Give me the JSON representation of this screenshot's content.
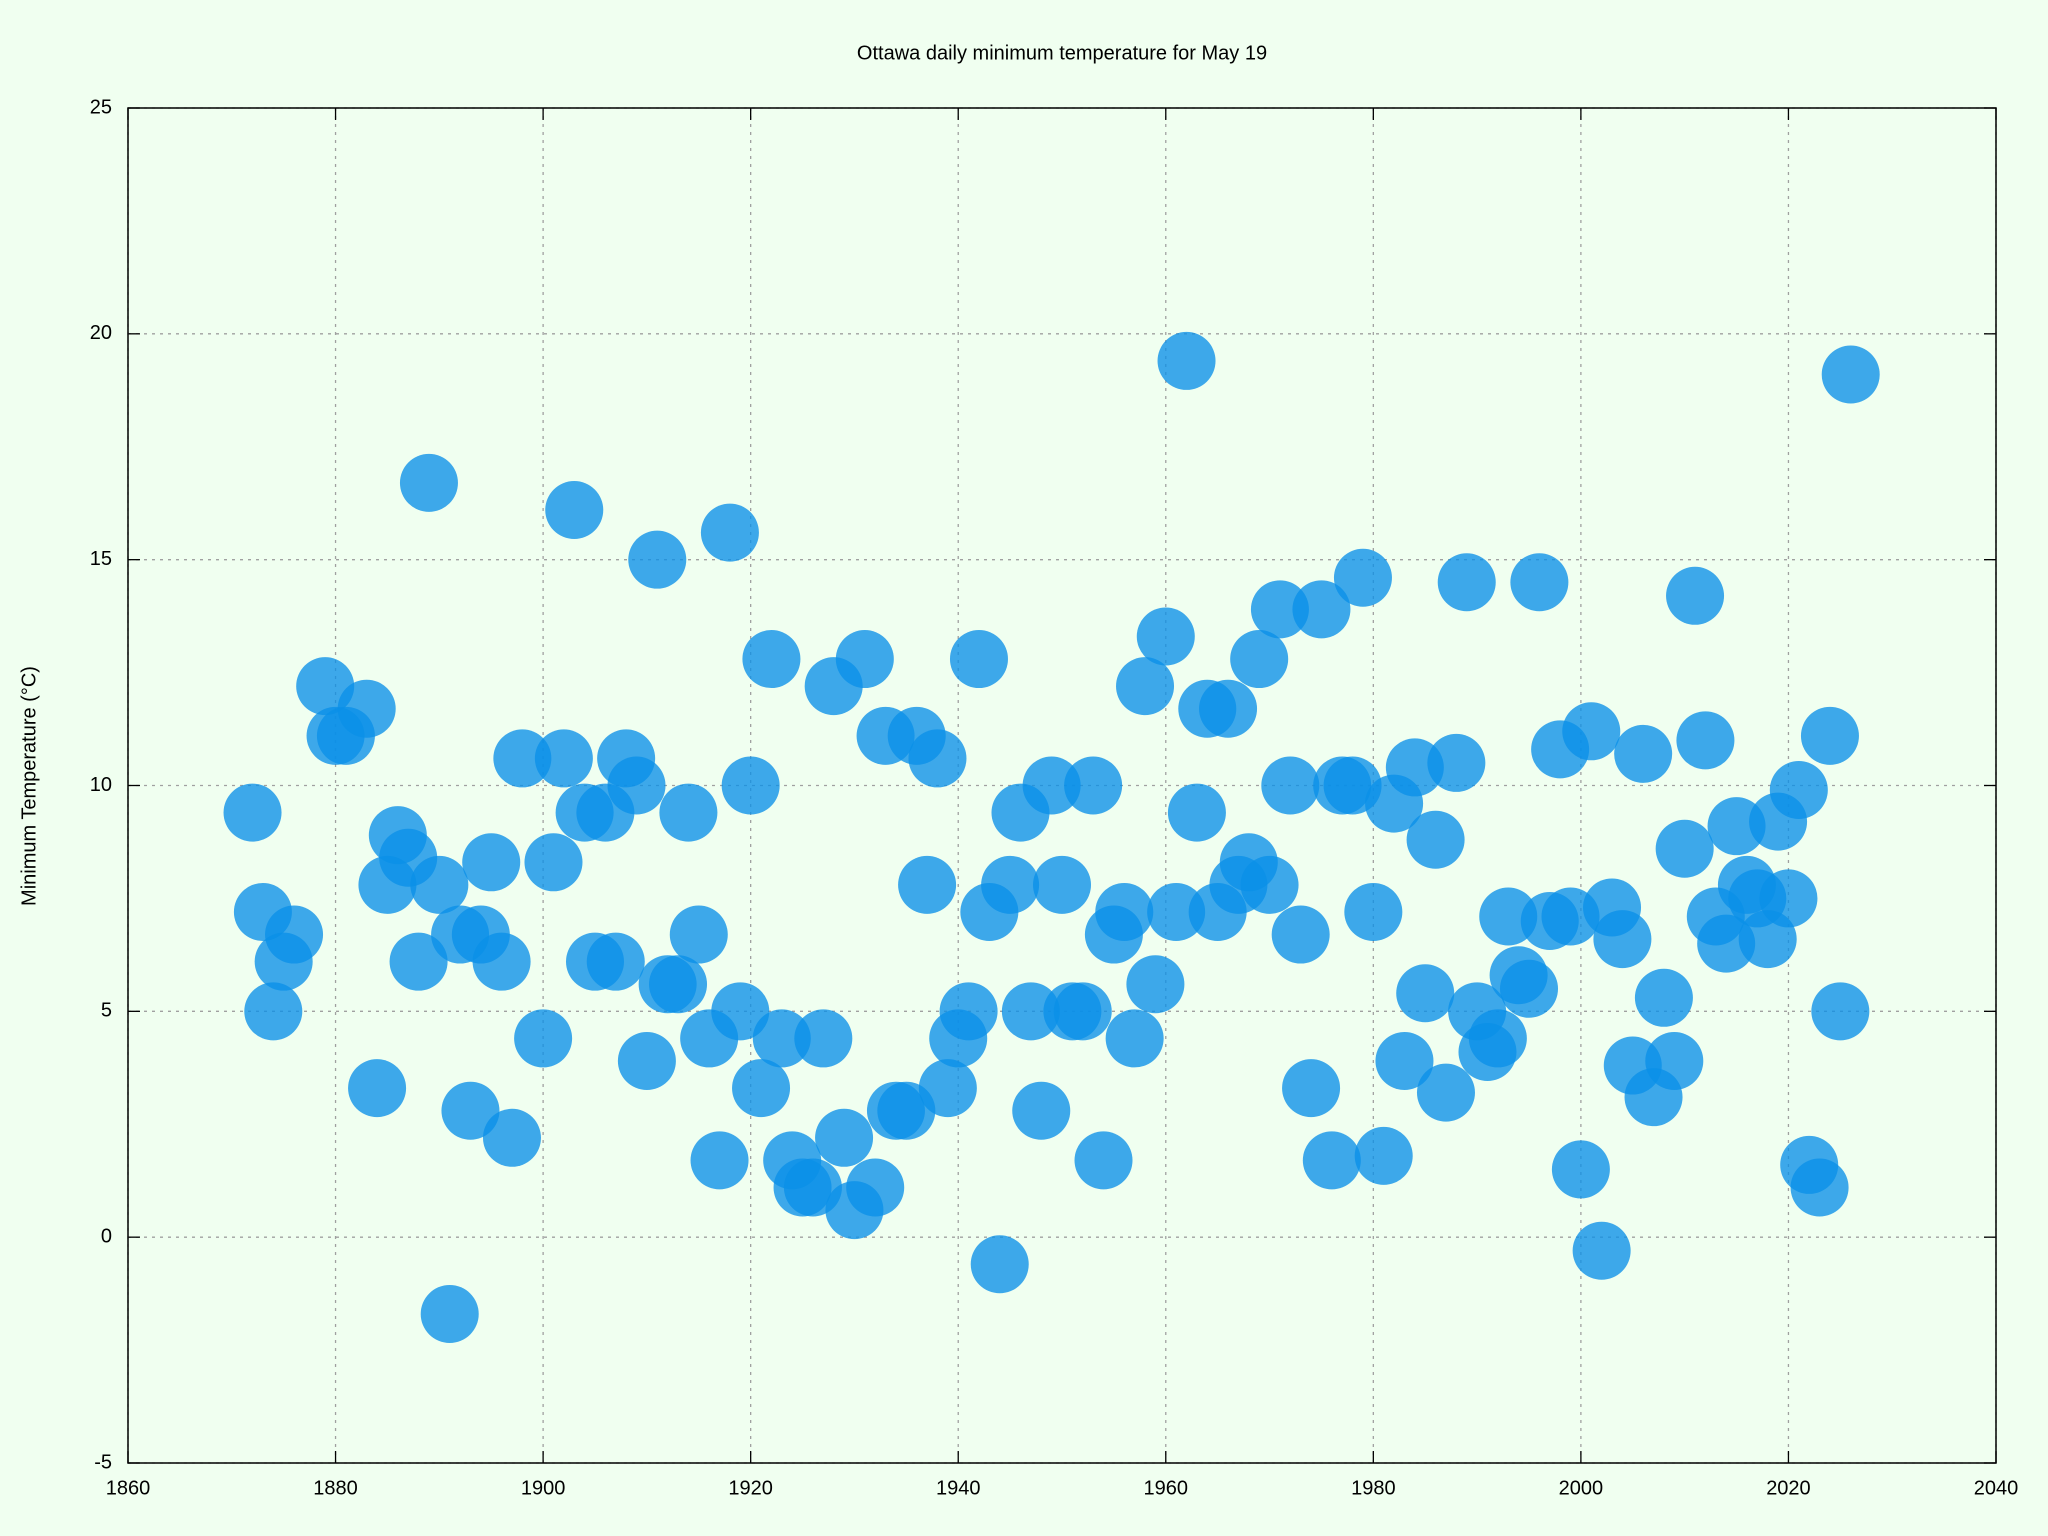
{
  "chart_data": {
    "type": "scatter",
    "title": "Ottawa daily minimum temperature for May 19",
    "y_label": "Minimum Temperature (°C)",
    "x": [
      1872,
      1873,
      1874,
      1875,
      1876,
      1879,
      1880,
      1881,
      1883,
      1884,
      1885,
      1886,
      1887,
      1888,
      1889,
      1890,
      1891,
      1892,
      1893,
      1894,
      1895,
      1896,
      1897,
      1898,
      1900,
      1901,
      1902,
      1903,
      1904,
      1905,
      1906,
      1907,
      1908,
      1909,
      1910,
      1911,
      1912,
      1913,
      1914,
      1915,
      1916,
      1917,
      1918,
      1919,
      1920,
      1921,
      1922,
      1923,
      1924,
      1925,
      1926,
      1927,
      1928,
      1929,
      1930,
      1931,
      1932,
      1933,
      1934,
      1935,
      1936,
      1937,
      1938,
      1939,
      1940,
      1941,
      1942,
      1943,
      1944,
      1945,
      1946,
      1947,
      1948,
      1949,
      1950,
      1951,
      1952,
      1953,
      1954,
      1955,
      1956,
      1957,
      1958,
      1959,
      1960,
      1961,
      1962,
      1963,
      1964,
      1965,
      1966,
      1967,
      1968,
      1969,
      1970,
      1971,
      1972,
      1973,
      1974,
      1975,
      1976,
      1977,
      1978,
      1979,
      1980,
      1981,
      1982,
      1983,
      1984,
      1985,
      1986,
      1987,
      1988,
      1989,
      1990,
      1991,
      1992,
      1993,
      1994,
      1995,
      1996,
      1997,
      1998,
      1999,
      2000,
      2001,
      2002,
      2003,
      2004,
      2005,
      2006,
      2007,
      2008,
      2009,
      2010,
      2011,
      2012,
      2013,
      2014,
      2015,
      2016,
      2017,
      2018,
      2019,
      2020,
      2021,
      2022,
      2023,
      2024,
      2025,
      2026
    ],
    "series": [
      {
        "color": "#0a8fe8",
        "values": [
          9.4,
          7.2,
          5.0,
          6.1,
          6.7,
          12.2,
          11.1,
          11.1,
          11.7,
          3.3,
          7.8,
          8.9,
          8.4,
          6.1,
          16.7,
          7.8,
          -1.7,
          6.7,
          2.8,
          6.7,
          8.3,
          6.1,
          2.2,
          10.6,
          4.4,
          8.3,
          10.6,
          16.1,
          9.4,
          6.1,
          9.4,
          6.1,
          10.6,
          10.0,
          3.9,
          15.0,
          5.6,
          5.6,
          9.4,
          6.7,
          4.4,
          1.7,
          15.6,
          5.0,
          10.0,
          3.3,
          12.8,
          4.4,
          1.7,
          1.1,
          1.1,
          4.4,
          12.2,
          2.2,
          0.6,
          12.8,
          1.1,
          11.1,
          2.8,
          2.8,
          11.1,
          7.8,
          10.6,
          3.3,
          4.4,
          5.0,
          12.8,
          7.2,
          -0.6,
          7.8,
          9.4,
          5.0,
          2.8,
          10.0,
          7.8,
          5.0,
          5.0,
          10.0,
          1.7,
          6.7,
          7.2,
          4.4,
          12.2,
          5.6,
          13.3,
          7.2,
          19.4,
          9.4,
          11.7,
          7.2,
          11.7,
          7.8,
          8.3,
          12.8,
          7.8,
          13.9,
          10.0,
          6.7,
          3.3,
          13.9,
          1.7,
          10.0,
          10.0,
          14.6,
          7.2,
          1.8,
          9.6,
          3.9,
          10.4,
          5.4,
          8.8,
          3.2,
          10.5,
          14.5,
          5.0,
          4.1,
          4.4,
          7.1,
          5.8,
          5.5,
          14.5,
          7.0,
          10.8,
          7.1,
          1.5,
          11.2,
          -0.3,
          7.3,
          6.6,
          3.8,
          10.7,
          3.1,
          5.3,
          3.9,
          8.6,
          14.2,
          11.0,
          7.1,
          6.5,
          9.1,
          7.8,
          7.5,
          6.6,
          9.2,
          7.5,
          9.9,
          1.6,
          1.1,
          11.1,
          5.0,
          19.1
        ]
      }
    ],
    "xlim": [
      1860,
      2040
    ],
    "xticks": [
      1860,
      1880,
      1900,
      1920,
      1940,
      1960,
      1980,
      2000,
      2020,
      2040
    ],
    "ylim": [
      -5,
      25
    ],
    "yticks": [
      -5,
      0,
      5,
      10,
      15,
      20,
      25
    ],
    "grid": true
  }
}
